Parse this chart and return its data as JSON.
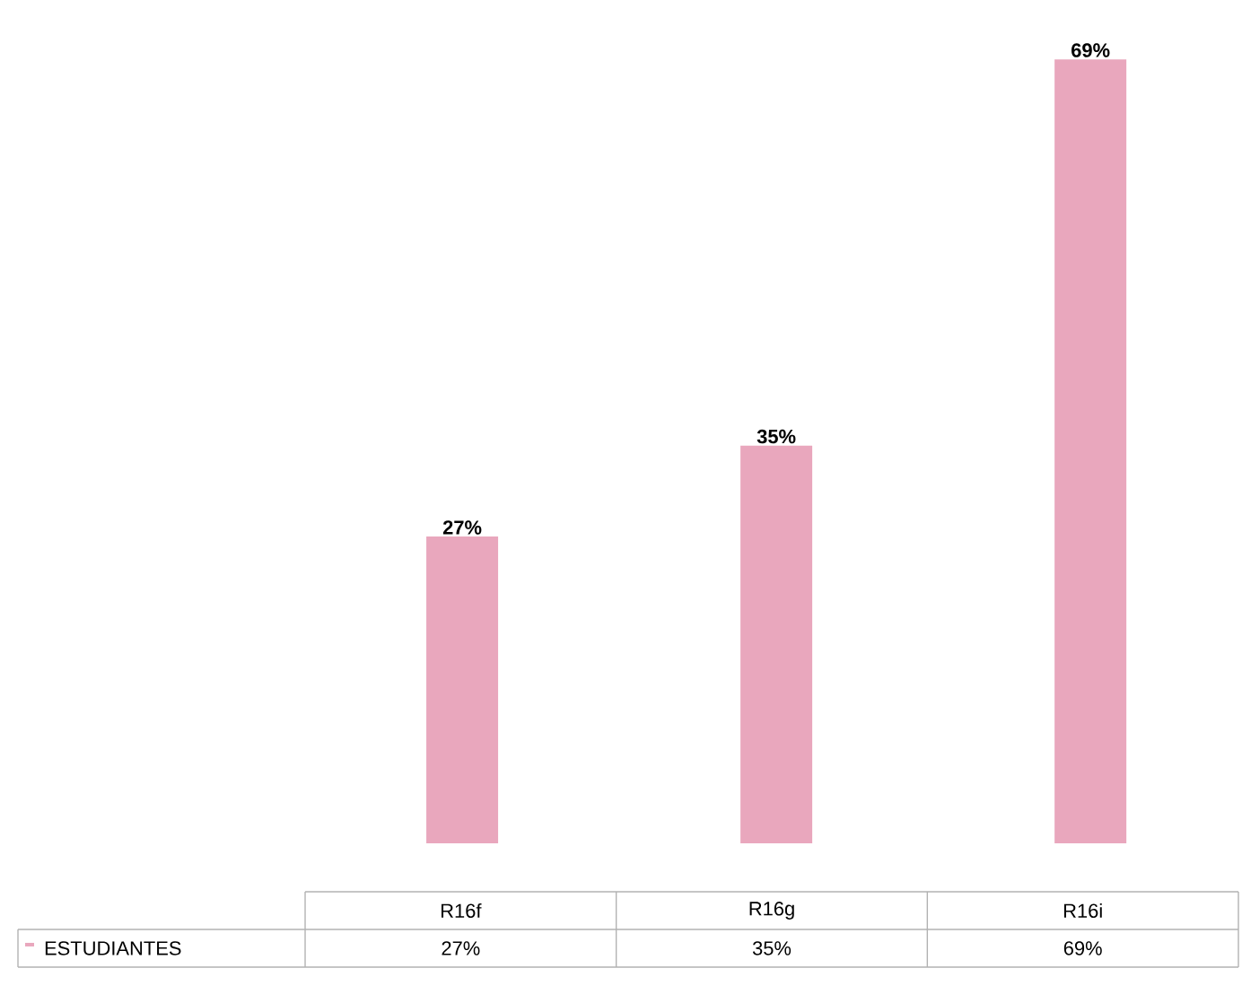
{
  "chart_data": {
    "type": "bar",
    "categories": [
      "R16f",
      "R16g",
      "R16i"
    ],
    "series": [
      {
        "name": "ESTUDIANTES",
        "color": "#e9a7bd",
        "values": [
          27,
          35,
          69
        ],
        "value_labels": [
          "27%",
          "35%",
          "69%"
        ]
      }
    ],
    "legend": "bottom left"
  }
}
